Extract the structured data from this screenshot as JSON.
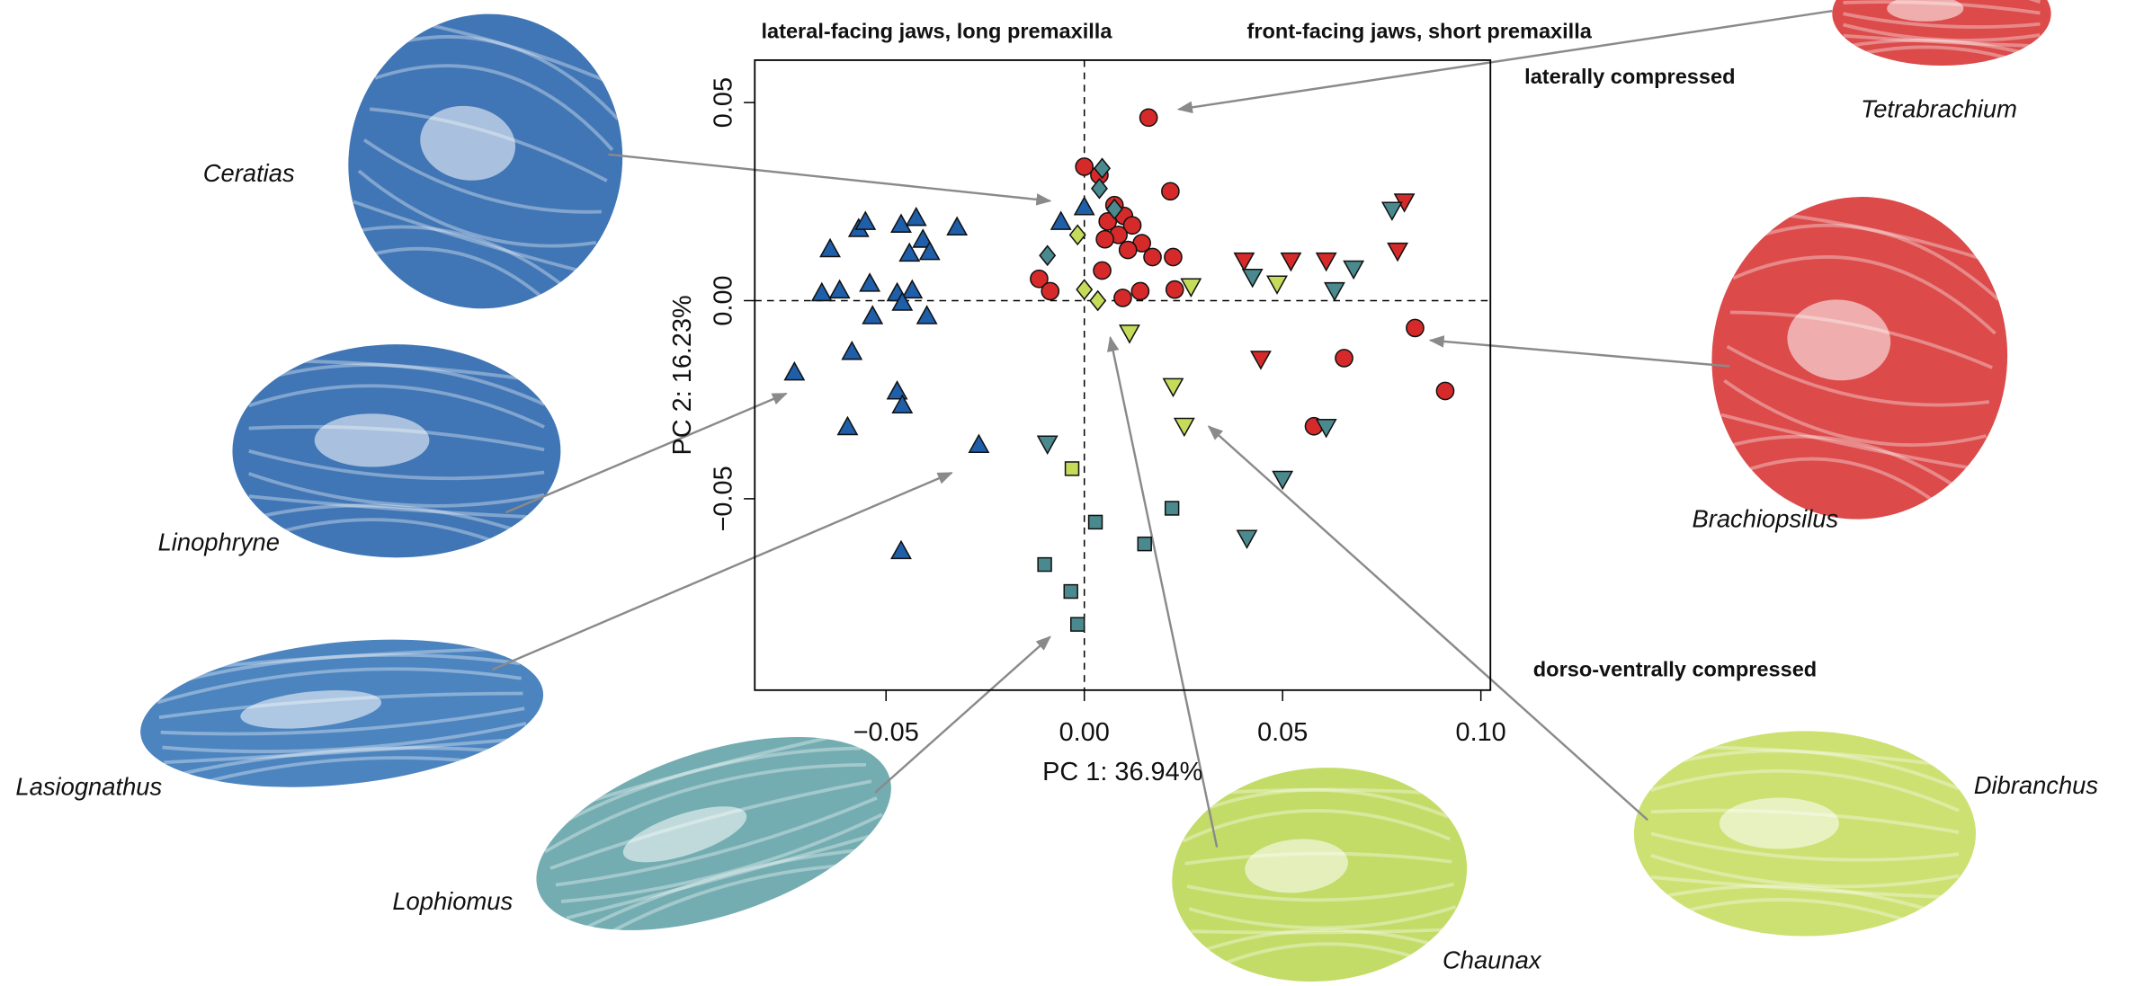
{
  "chart_data": {
    "type": "scatter",
    "xlabel": "PC 1: 36.94%",
    "ylabel": "PC 2: 16.23%",
    "annotations": [
      "lateral-facing jaws, long premaxilla",
      "front-facing jaws, short premaxilla",
      "laterally compressed",
      "dorso-ventrally compressed"
    ],
    "xlim": [
      -0.0831,
      0.1024
    ],
    "ylim": [
      -0.0983,
      0.0607
    ],
    "xticks": [
      {
        "value": -0.05,
        "label": "−0.05"
      },
      {
        "value": 0,
        "label": "0.00"
      },
      0.05,
      {
        "value": 0.1,
        "label": "0.10"
      }
    ],
    "yticks": [
      {
        "value": -0.05,
        "label": "−0.05"
      },
      {
        "value": 0,
        "label": "0.00"
      },
      0.05
    ],
    "zero_lines": true,
    "series": [
      {
        "color": "#1f5ea8",
        "marker": "triangle-up",
        "x": [
          -0.0731,
          -0.0662,
          -0.0641,
          -0.0617,
          -0.0569,
          -0.0552,
          -0.0541,
          -0.0534,
          -0.0586,
          -0.0597,
          -0.0472,
          -0.0462,
          -0.0441,
          -0.0434,
          -0.0424,
          -0.0407,
          -0.0397,
          -0.039,
          -0.0321,
          -0.0472,
          -0.0459,
          -0.0462,
          -0.0266,
          -0.0059,
          0.0,
          -0.0459
        ],
        "y": [
          -0.0183,
          0.0017,
          0.0128,
          0.0024,
          0.0179,
          0.0197,
          0.0041,
          -0.0041,
          -0.0131,
          -0.0321,
          0.0017,
          0.019,
          0.0117,
          0.0024,
          0.0207,
          0.0152,
          -0.0041,
          0.0121,
          0.0183,
          -0.0231,
          -0.0266,
          -0.0634,
          -0.0366,
          0.0197,
          0.0234,
          -0.0007
        ]
      },
      {
        "color": "#d62a2a",
        "marker": "circle",
        "x": [
          0.0162,
          0.0,
          0.0038,
          0.0217,
          0.0076,
          0.01,
          0.0059,
          0.0121,
          0.0086,
          0.0145,
          0.0052,
          0.011,
          0.0172,
          0.0224,
          -0.0114,
          -0.0086,
          0.0045,
          0.0141,
          0.0097,
          0.0228,
          0.0834,
          0.0655,
          0.091,
          0.0579
        ],
        "y": [
          0.0462,
          0.0338,
          0.0317,
          0.0276,
          0.0241,
          0.0214,
          0.02,
          0.019,
          0.0166,
          0.0145,
          0.0155,
          0.0128,
          0.011,
          0.011,
          0.0055,
          0.0024,
          0.0076,
          0.0024,
          0.0007,
          0.0028,
          -0.0069,
          -0.0145,
          -0.0228,
          -0.0317
        ]
      },
      {
        "color": "#d62a2a",
        "marker": "triangle-down",
        "x": [
          0.0403,
          0.0521,
          0.061,
          0.079,
          0.0807,
          0.0445
        ],
        "y": [
          0.0103,
          0.0103,
          0.0103,
          0.0128,
          0.0252,
          -0.0145
        ]
      },
      {
        "color": "#4a8a8f",
        "marker": "triangle-down",
        "x": [
          0.0776,
          0.0424,
          0.0679,
          0.0631,
          0.061,
          0.05,
          0.041,
          -0.0093
        ],
        "y": [
          0.0231,
          0.0062,
          0.0083,
          0.0028,
          -0.0317,
          -0.0448,
          -0.0597,
          -0.0359
        ]
      },
      {
        "color": "#c4dc5a",
        "marker": "triangle-down",
        "x": [
          0.0269,
          0.0486,
          0.0114,
          0.0224,
          0.0252
        ],
        "y": [
          0.0038,
          0.0045,
          -0.0079,
          -0.0214,
          -0.0314
        ]
      },
      {
        "color": "#4a8a8f",
        "marker": "diamond",
        "x": [
          0.0045,
          0.0038,
          -0.0093,
          0.0076
        ],
        "y": [
          0.0334,
          0.0283,
          0.0114,
          0.0231
        ]
      },
      {
        "color": "#c4dc5a",
        "marker": "diamond",
        "x": [
          -0.0017,
          0.0,
          0.0034
        ],
        "y": [
          0.0166,
          0.0028,
          0.0
        ]
      },
      {
        "color": "#c4dc5a",
        "marker": "square",
        "x": [
          -0.0031
        ],
        "y": [
          -0.0424
        ]
      },
      {
        "color": "#4a8a8f",
        "marker": "square",
        "x": [
          0.0028,
          0.0221,
          0.0152,
          -0.01,
          -0.0034,
          -0.0017
        ],
        "y": [
          -0.0559,
          -0.0524,
          -0.0614,
          -0.0666,
          -0.0734,
          -0.0817
        ]
      }
    ]
  },
  "specimens": [
    "Ceratias",
    "Linophryne",
    "Lasiognathus",
    "Lophiomus",
    "Chaunax",
    "Dibranchus",
    "Brachiopsilus",
    "Tetrabrachium"
  ]
}
